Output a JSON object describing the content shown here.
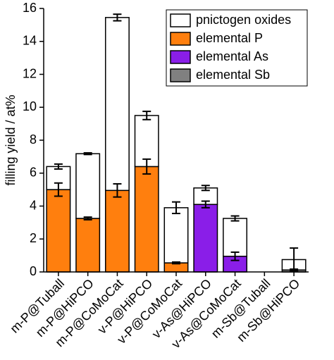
{
  "chart_data": {
    "type": "bar",
    "stacked": true,
    "y_label": "filling yield / at%",
    "categories": [
      "m-P@Tuball",
      "m-P@HiPCO",
      "m-P@CoMoCat",
      "v-P@HiPCO",
      "v-P@CoMoCat",
      "v-As@HiPCO",
      "v-As@CoMoCat",
      "m-Sb@Tuball",
      "m-Sb@HiPCO"
    ],
    "series": [
      {
        "name": "pnictogen oxides",
        "color": "#ffffff",
        "values": [
          1.4,
          3.93,
          10.5,
          3.1,
          3.35,
          1.0,
          2.3,
          null,
          0.63
        ],
        "errors": [
          0.15,
          0.05,
          0.2,
          0.25,
          0.35,
          0.15,
          0.15,
          null,
          0.7
        ]
      },
      {
        "name": "elemental P",
        "color": "#ff7f0e",
        "values": [
          5.0,
          3.25,
          4.95,
          6.4,
          0.55,
          null,
          null,
          null,
          null
        ],
        "errors": [
          0.4,
          0.08,
          0.4,
          0.45,
          0.05,
          null,
          null,
          null,
          null
        ]
      },
      {
        "name": "elemental As",
        "color": "#8a1ee8",
        "values": [
          null,
          null,
          null,
          null,
          null,
          4.1,
          0.95,
          null,
          null
        ],
        "errors": [
          null,
          null,
          null,
          null,
          null,
          0.2,
          0.25,
          null,
          null
        ]
      },
      {
        "name": "elemental Sb",
        "color": "#808080",
        "values": [
          null,
          null,
          null,
          null,
          null,
          null,
          null,
          0,
          0.12
        ],
        "errors": [
          null,
          null,
          null,
          null,
          null,
          null,
          null,
          null,
          0.05
        ]
      }
    ],
    "ylim": [
      0,
      16
    ],
    "yticks": [
      0,
      2,
      4,
      6,
      8,
      10,
      12,
      14,
      16
    ],
    "legend": "upper right"
  }
}
